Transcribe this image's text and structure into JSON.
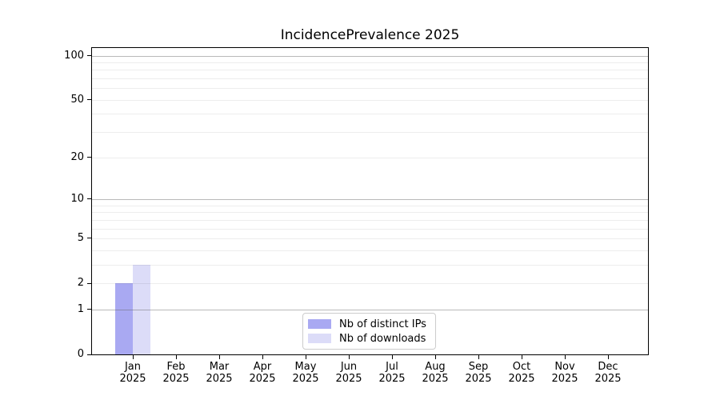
{
  "chart_data": {
    "type": "bar",
    "title": "IncidencePrevalence 2025",
    "categories": [
      "Jan",
      "Feb",
      "Mar",
      "Apr",
      "May",
      "Jun",
      "Jul",
      "Aug",
      "Sep",
      "Oct",
      "Nov",
      "Dec"
    ],
    "year": "2025",
    "series": [
      {
        "name": "Nb of distinct IPs",
        "color": "#a9a9f2",
        "values": [
          2,
          0,
          0,
          0,
          0,
          0,
          0,
          0,
          0,
          0,
          0,
          0
        ]
      },
      {
        "name": "Nb of downloads",
        "color": "#dcdcf8",
        "values": [
          3,
          0,
          0,
          0,
          0,
          0,
          0,
          0,
          0,
          0,
          0,
          0
        ]
      }
    ],
    "yscale": "log1p",
    "ylim": [
      0,
      114
    ],
    "yticks": [
      0,
      1,
      2,
      5,
      10,
      20,
      50,
      100
    ],
    "ytick_major_grid": [
      1,
      10,
      100
    ],
    "ytick_minor_grid": [
      2,
      3,
      4,
      5,
      6,
      7,
      8,
      9,
      20,
      30,
      40,
      50,
      60,
      70,
      80,
      90
    ],
    "grid": "horizontal",
    "legend_position": "lower center"
  }
}
